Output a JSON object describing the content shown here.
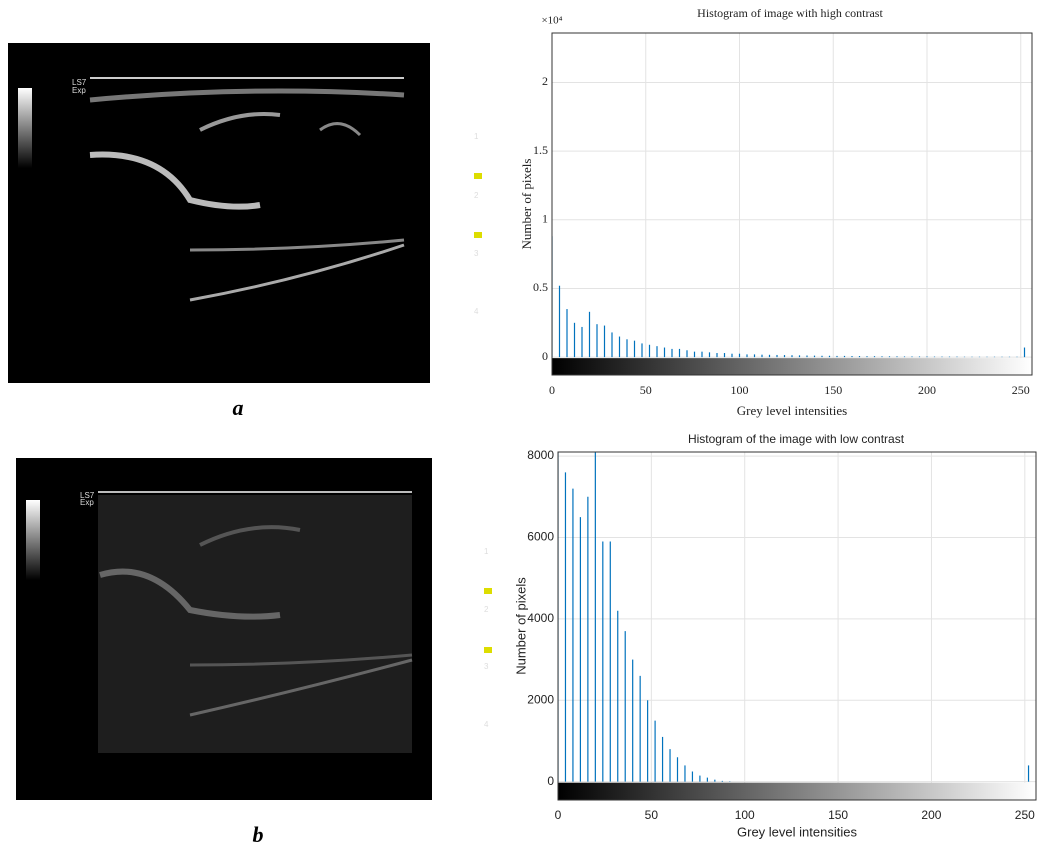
{
  "figures": [
    {
      "caption": "a",
      "labels": [
        "LS7",
        "Exp",
        "1",
        "2",
        "3",
        "4"
      ]
    },
    {
      "caption": "b",
      "labels": [
        "LS7",
        "Exp",
        "1",
        "2",
        "3",
        "4"
      ]
    }
  ],
  "chart_data": [
    {
      "type": "histogram",
      "title": "Histogram of image with high contrast",
      "x_label": "Grey level intensities",
      "y_label": "Number of pixels",
      "y_multiplier": "×10⁴",
      "color": "#0072bd",
      "grid": true,
      "x": [
        0,
        4,
        8,
        12,
        16,
        20,
        24,
        28,
        32,
        36,
        40,
        44,
        48,
        52,
        56,
        60,
        64,
        68,
        72,
        76,
        80,
        84,
        88,
        92,
        96,
        100,
        104,
        108,
        112,
        116,
        120,
        124,
        128,
        132,
        136,
        140,
        144,
        148,
        152,
        156,
        160,
        164,
        168,
        172,
        176,
        180,
        184,
        188,
        192,
        196,
        200,
        204,
        208,
        212,
        216,
        220,
        224,
        228,
        232,
        236,
        240,
        244,
        248,
        252
      ],
      "values": [
        8800,
        5200,
        3500,
        2500,
        2200,
        3300,
        2400,
        2300,
        1800,
        1500,
        1300,
        1200,
        1000,
        900,
        800,
        700,
        600,
        600,
        500,
        400,
        400,
        350,
        300,
        300,
        250,
        250,
        200,
        200,
        180,
        170,
        160,
        150,
        140,
        130,
        120,
        110,
        100,
        100,
        90,
        90,
        80,
        80,
        70,
        70,
        60,
        60,
        60,
        50,
        50,
        50,
        50,
        40,
        40,
        40,
        40,
        30,
        30,
        30,
        30,
        30,
        30,
        30,
        30,
        700
      ],
      "xlim": [
        0,
        256
      ],
      "xticks": [
        0,
        50,
        100,
        150,
        200,
        250
      ],
      "ylim": [
        -1300,
        23600
      ],
      "yticks": [
        0,
        {
          "value": 5000,
          "label": "0.5"
        },
        {
          "value": 10000,
          "label": "1"
        },
        {
          "value": 15000,
          "label": "1.5"
        },
        {
          "value": 20000,
          "label": "2"
        }
      ]
    },
    {
      "type": "histogram",
      "title": "Histogram of the image with low contrast",
      "x_label": "Grey level intensities",
      "y_label": "Number of pixels",
      "color": "#0072bd",
      "grid": true,
      "x": [
        0,
        4,
        8,
        12,
        16,
        20,
        24,
        28,
        32,
        36,
        40,
        44,
        48,
        52,
        56,
        60,
        64,
        68,
        72,
        76,
        80,
        84,
        88,
        92,
        96,
        100,
        104,
        108,
        112,
        116,
        120,
        124,
        128,
        132,
        136,
        140,
        144,
        148,
        152,
        156,
        160,
        164,
        168,
        172,
        176,
        180,
        184,
        188,
        192,
        196,
        200,
        204,
        208,
        212,
        216,
        220,
        224,
        228,
        232,
        236,
        240,
        244,
        248,
        252
      ],
      "values": [
        8100,
        7600,
        7200,
        6500,
        7000,
        8100,
        5900,
        5900,
        4200,
        3700,
        3000,
        2600,
        2000,
        1500,
        1100,
        800,
        600,
        400,
        250,
        150,
        100,
        50,
        20,
        10,
        0,
        0,
        0,
        0,
        0,
        0,
        0,
        0,
        0,
        0,
        0,
        0,
        0,
        0,
        0,
        0,
        0,
        0,
        0,
        0,
        0,
        0,
        0,
        0,
        0,
        0,
        0,
        0,
        0,
        0,
        0,
        0,
        0,
        0,
        0,
        0,
        0,
        0,
        0,
        400
      ],
      "xlim": [
        0,
        256
      ],
      "xticks": [
        0,
        50,
        100,
        150,
        200,
        250
      ],
      "ylim": [
        -450,
        8100
      ],
      "yticks": [
        0,
        2000,
        4000,
        6000,
        8000
      ]
    }
  ]
}
